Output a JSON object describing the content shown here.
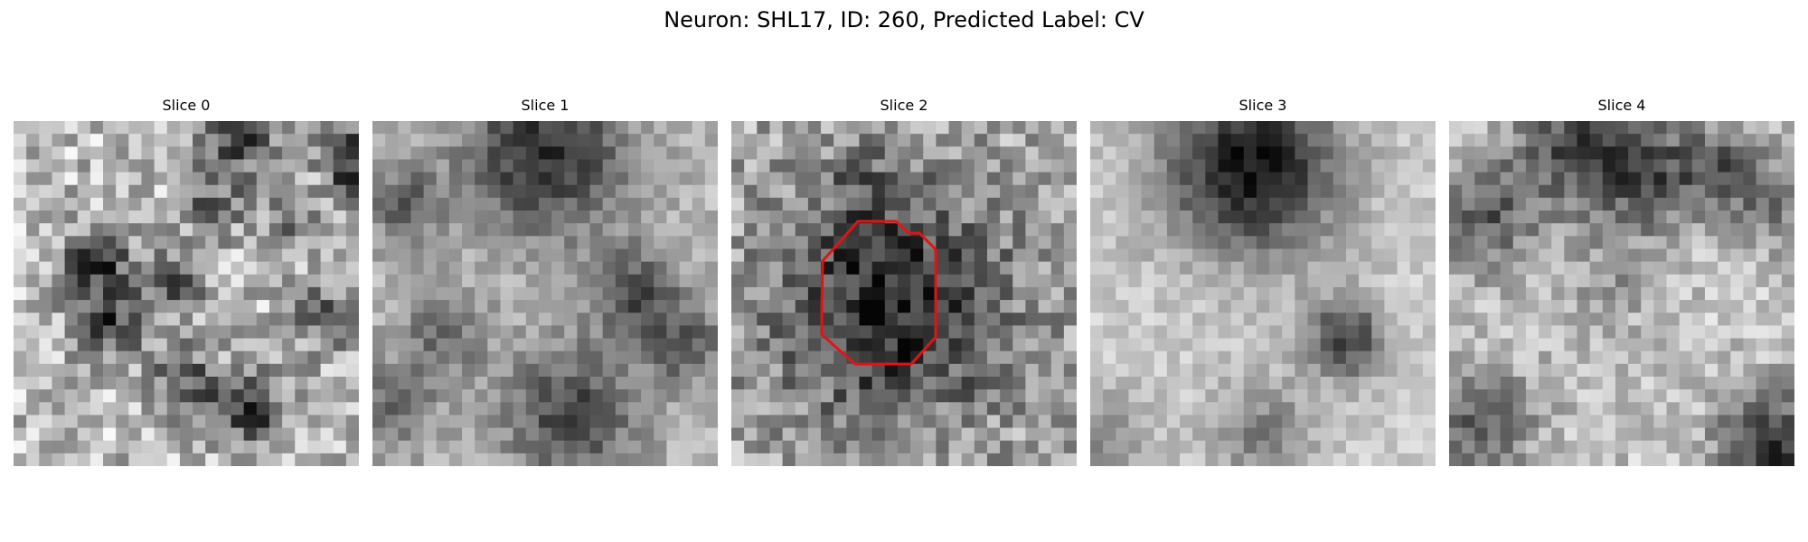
{
  "figure": {
    "title": "Neuron: SHL17, ID: 260, Predicted Label: CV"
  },
  "panels": [
    {
      "title": "Slice 0",
      "colormap": "grayscale",
      "has_contour": false
    },
    {
      "title": "Slice 1",
      "colormap": "grayscale",
      "has_contour": false
    },
    {
      "title": "Slice 2",
      "colormap": "grayscale",
      "has_contour": true
    },
    {
      "title": "Slice 3",
      "colormap": "grayscale",
      "has_contour": false
    },
    {
      "title": "Slice 4",
      "colormap": "grayscale",
      "has_contour": false
    }
  ],
  "contour": {
    "color": "#e01414",
    "description": "segmentation outline on Slice 2"
  }
}
